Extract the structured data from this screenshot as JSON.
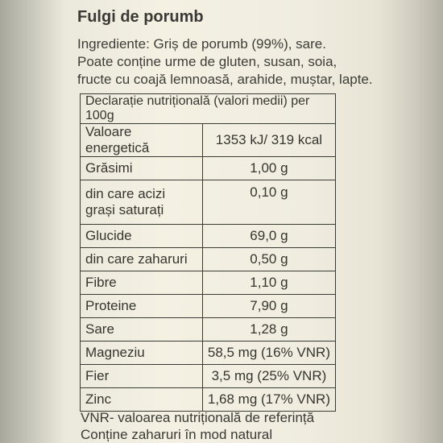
{
  "product": {
    "title": "Fulgi de porumb",
    "ingredients_lines": [
      "Ingrediente: Griș de porumb (99%), sare.",
      "Poate conține urme de gluten, susan, soia,",
      "fructe cu coajă lemnoasă, arahide, muștar, lapte."
    ]
  },
  "nutrition": {
    "header": "Declarație nutrițională (valori medii) per 100g",
    "rows": [
      {
        "name": "Valoare energetică",
        "value": "1353 kJ/ 319 kcal"
      },
      {
        "name": "Grăsimi",
        "value": "1,00 g"
      },
      {
        "name": "din care acizi grași saturați",
        "value": "0,10 g"
      },
      {
        "name": "Glucide",
        "value": "69,0 g"
      },
      {
        "name": "din care zaharuri",
        "value": "0,50 g"
      },
      {
        "name": "Fibre",
        "value": "1,10 g"
      },
      {
        "name": "Proteine",
        "value": "7,90 g"
      },
      {
        "name": "Sare",
        "value": "1,28 g"
      },
      {
        "name": "Magneziu",
        "value": "58,5 mg (16% VNR)"
      },
      {
        "name": "Fier",
        "value": "3,5 mg (25% VNR)"
      },
      {
        "name": "Zinc",
        "value": "1,68 mg (17% VNR)"
      }
    ]
  },
  "footer": {
    "lines": [
      "VNR- valoarea nutrițională de referință",
      "Conține zaharuri în mod natural"
    ]
  }
}
